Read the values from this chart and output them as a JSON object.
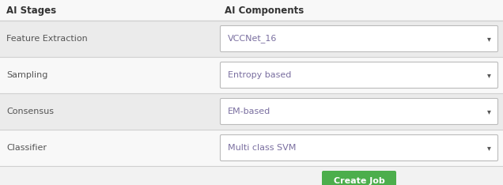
{
  "background_color": "#f2f2f2",
  "header_col1": "AI Stages",
  "header_col2": "AI Components",
  "header_font_color": "#333333",
  "header_font_size": 8.5,
  "rows": [
    {
      "stage": "Feature Extraction",
      "component": "VCCNet_16"
    },
    {
      "stage": "Sampling",
      "component": "Entropy based"
    },
    {
      "stage": "Consensus",
      "component": "EM-based"
    },
    {
      "stage": "Classifier",
      "component": "Multi class SVM"
    }
  ],
  "stage_font_color": "#555555",
  "stage_font_size": 8,
  "dropdown_text_color": "#7a6fa0",
  "dropdown_font_size": 8,
  "dropdown_border_color": "#bbbbbb",
  "dropdown_bg": "#ffffff",
  "arrow_color": "#555555",
  "row_bg_odd": "#ebebeb",
  "row_bg_even": "#f8f8f8",
  "divider_color": "#d0d0d0",
  "button_text": "Create Job",
  "button_bg": "#4cae4c",
  "button_text_color": "#ffffff",
  "button_font_size": 8,
  "fig_width": 6.36,
  "fig_height": 2.34,
  "dpi": 100
}
